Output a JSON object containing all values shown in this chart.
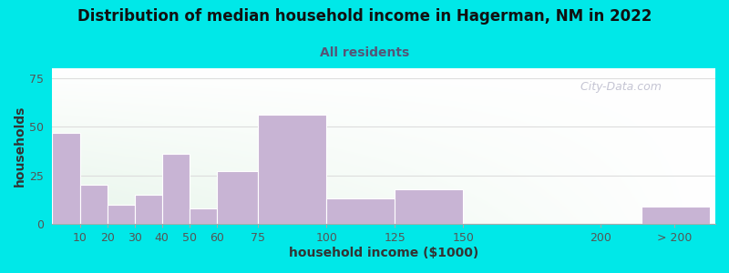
{
  "title": "Distribution of median household income in Hagerman, NM in 2022",
  "subtitle": "All residents",
  "xlabel": "household income ($1000)",
  "ylabel": "households",
  "background_outer": "#00e8e8",
  "bar_color": "#c8b4d4",
  "bar_edge_color": "#c8b4d4",
  "title_fontsize": 12,
  "subtitle_fontsize": 10,
  "label_fontsize": 10,
  "tick_fontsize": 9,
  "values": [
    47,
    20,
    10,
    15,
    36,
    8,
    27,
    56,
    13,
    18,
    0,
    9
  ],
  "bar_lefts": [
    0,
    10,
    20,
    30,
    40,
    50,
    60,
    75,
    100,
    125,
    150,
    215
  ],
  "bar_rights": [
    10,
    20,
    30,
    40,
    50,
    60,
    75,
    100,
    125,
    150,
    165,
    240
  ],
  "ylim": [
    0,
    80
  ],
  "yticks": [
    0,
    25,
    50,
    75
  ],
  "xtick_labels": [
    "10",
    "20",
    "30",
    "40",
    "50",
    "60",
    "75",
    "100",
    "125",
    "150",
    "200",
    "> 200"
  ],
  "xtick_positions": [
    10,
    20,
    30,
    40,
    50,
    60,
    75,
    100,
    125,
    150,
    200,
    227
  ],
  "xlim": [
    0,
    242
  ],
  "watermark": "   City-Data.com",
  "subtitle_color": "#555577",
  "grid_color": "#dddddd",
  "axis_color": "#888888"
}
